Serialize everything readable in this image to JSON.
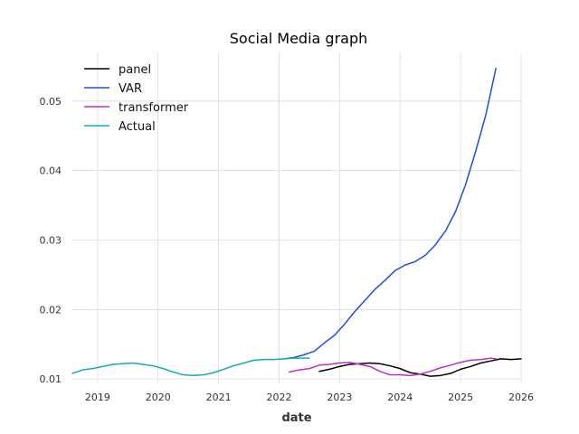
{
  "chart_data": {
    "type": "line",
    "title": "Social Media graph",
    "xlabel": "date",
    "ylabel": "",
    "x_ticks": [
      "2019",
      "2020",
      "2021",
      "2022",
      "2023",
      "2024",
      "2025",
      "2026"
    ],
    "y_ticks": [
      "0.01",
      "0.02",
      "0.03",
      "0.04",
      "0.05"
    ],
    "xlim": [
      "2018-08-01",
      "2026-01-01"
    ],
    "ylim": [
      0.0095,
      0.057
    ],
    "grid": true,
    "legend_position": "top-left",
    "series": [
      {
        "name": "panel",
        "color": "#000000",
        "points": [
          [
            "2022-09-01",
            0.0111
          ],
          [
            "2022-11-01",
            0.0114
          ],
          [
            "2023-01-01",
            0.0118
          ],
          [
            "2023-03-01",
            0.0121
          ],
          [
            "2023-05-01",
            0.0122
          ],
          [
            "2023-07-01",
            0.0123
          ],
          [
            "2023-09-01",
            0.0122
          ],
          [
            "2023-11-01",
            0.0119
          ],
          [
            "2024-01-01",
            0.0115
          ],
          [
            "2024-03-01",
            0.0109
          ],
          [
            "2024-05-01",
            0.0107
          ],
          [
            "2024-07-01",
            0.0104
          ],
          [
            "2024-09-01",
            0.0105
          ],
          [
            "2024-11-01",
            0.0108
          ],
          [
            "2025-01-01",
            0.0114
          ],
          [
            "2025-03-01",
            0.0118
          ],
          [
            "2025-05-01",
            0.0123
          ],
          [
            "2025-07-01",
            0.0126
          ],
          [
            "2025-09-01",
            0.0129
          ],
          [
            "2025-11-01",
            0.0128
          ],
          [
            "2026-01-01",
            0.0129
          ]
        ]
      },
      {
        "name": "VAR",
        "color": "#1f4fe0",
        "points": [
          [
            "2022-02-01",
            0.0129
          ],
          [
            "2022-04-01",
            0.0131
          ],
          [
            "2022-06-01",
            0.0135
          ],
          [
            "2022-08-01",
            0.014
          ],
          [
            "2022-10-01",
            0.0152
          ],
          [
            "2022-12-01",
            0.0163
          ],
          [
            "2023-02-01",
            0.0179
          ],
          [
            "2023-04-01",
            0.0197
          ],
          [
            "2023-06-01",
            0.0213
          ],
          [
            "2023-08-01",
            0.0229
          ],
          [
            "2023-10-01",
            0.0242
          ],
          [
            "2023-12-01",
            0.0256
          ],
          [
            "2024-02-01",
            0.0264
          ],
          [
            "2024-04-01",
            0.0269
          ],
          [
            "2024-06-01",
            0.0278
          ],
          [
            "2024-08-01",
            0.0293
          ],
          [
            "2024-10-01",
            0.0313
          ],
          [
            "2024-12-01",
            0.0341
          ],
          [
            "2025-02-01",
            0.038
          ],
          [
            "2025-04-01",
            0.0428
          ],
          [
            "2025-06-01",
            0.048
          ],
          [
            "2025-08-01",
            0.0547
          ]
        ]
      },
      {
        "name": "transformer",
        "color": "#bf2fc2",
        "points": [
          [
            "2022-03-01",
            0.011
          ],
          [
            "2022-05-01",
            0.0113
          ],
          [
            "2022-07-01",
            0.0115
          ],
          [
            "2022-09-01",
            0.012
          ],
          [
            "2022-11-01",
            0.0121
          ],
          [
            "2023-01-01",
            0.0123
          ],
          [
            "2023-03-01",
            0.0124
          ],
          [
            "2023-05-01",
            0.0121
          ],
          [
            "2023-07-01",
            0.0118
          ],
          [
            "2023-09-01",
            0.0111
          ],
          [
            "2023-11-01",
            0.0106
          ],
          [
            "2024-01-01",
            0.0106
          ],
          [
            "2024-03-01",
            0.0105
          ],
          [
            "2024-05-01",
            0.0107
          ],
          [
            "2024-07-01",
            0.0111
          ],
          [
            "2024-09-01",
            0.0116
          ],
          [
            "2024-11-01",
            0.012
          ],
          [
            "2025-01-01",
            0.0124
          ],
          [
            "2025-03-01",
            0.0127
          ],
          [
            "2025-05-01",
            0.0128
          ],
          [
            "2025-07-01",
            0.013
          ],
          [
            "2025-08-01",
            0.0129
          ]
        ]
      },
      {
        "name": "Actual",
        "color": "#17aab5",
        "points": [
          [
            "2018-08-01",
            0.0108
          ],
          [
            "2018-10-01",
            0.0113
          ],
          [
            "2018-12-01",
            0.0115
          ],
          [
            "2019-02-01",
            0.0118
          ],
          [
            "2019-04-01",
            0.0121
          ],
          [
            "2019-06-01",
            0.0122
          ],
          [
            "2019-08-01",
            0.0123
          ],
          [
            "2019-10-01",
            0.0121
          ],
          [
            "2019-12-01",
            0.0119
          ],
          [
            "2020-02-01",
            0.0115
          ],
          [
            "2020-04-01",
            0.011
          ],
          [
            "2020-06-01",
            0.0106
          ],
          [
            "2020-08-01",
            0.0105
          ],
          [
            "2020-10-01",
            0.0106
          ],
          [
            "2020-12-01",
            0.0109
          ],
          [
            "2021-02-01",
            0.0114
          ],
          [
            "2021-04-01",
            0.0119
          ],
          [
            "2021-06-01",
            0.0123
          ],
          [
            "2021-08-01",
            0.0127
          ],
          [
            "2021-10-01",
            0.0128
          ],
          [
            "2021-12-01",
            0.0128
          ],
          [
            "2022-02-01",
            0.0129
          ],
          [
            "2022-04-01",
            0.013
          ],
          [
            "2022-06-01",
            0.013
          ],
          [
            "2022-07-01",
            0.013
          ]
        ]
      }
    ]
  }
}
